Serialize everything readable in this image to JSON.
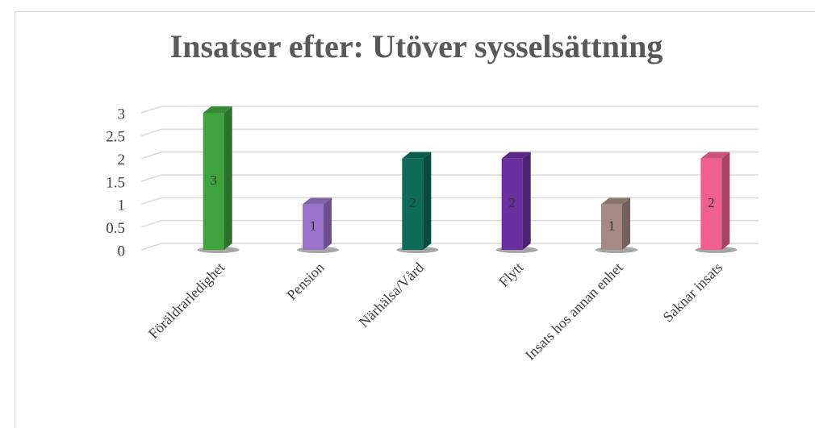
{
  "chart_data": {
    "type": "bar3d",
    "title": "Insatser efter: Utöver sysselsättning",
    "categories": [
      "Föräldrarledighet",
      "Pension",
      "Närhälsa/Vård",
      "Flytt",
      "Insats hos annan enhet",
      "Saknar insats"
    ],
    "values": [
      3,
      1,
      2,
      2,
      1,
      2
    ],
    "colors": [
      "#3fa33f",
      "#9a72c9",
      "#0e6b5a",
      "#6b2fa0",
      "#a48a82",
      "#ef6090"
    ],
    "ylim": [
      0,
      3
    ],
    "yticks": [
      0,
      0.5,
      1,
      1.5,
      2,
      2.5,
      3
    ],
    "grid": true
  }
}
